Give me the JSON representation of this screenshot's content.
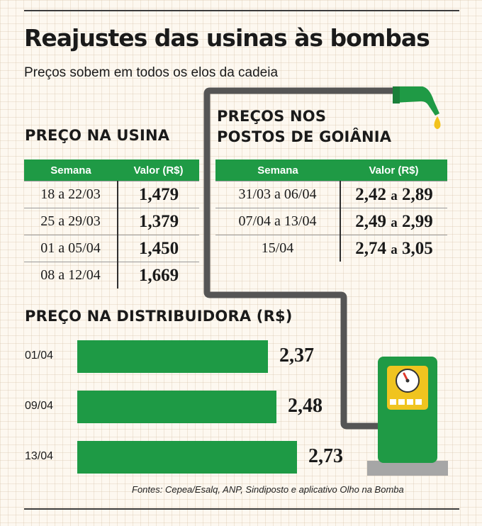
{
  "header": {
    "title": "Reajustes das usinas às bombas",
    "subtitle": "Preços sobem em todos os elos da cadeia"
  },
  "usina": {
    "heading": "PREÇO NA USINA",
    "columns": [
      "Semana",
      "Valor (R$)"
    ],
    "rows": [
      {
        "semana": "18 a 22/03",
        "valor": "1,479"
      },
      {
        "semana": "25 a 29/03",
        "valor": "1,379"
      },
      {
        "semana": "01 a 05/04",
        "valor": "1,450"
      },
      {
        "semana": "08 a 12/04",
        "valor": "1,669"
      }
    ]
  },
  "postos": {
    "heading_line1": "PREÇOS NOS",
    "heading_line2": "POSTOS DE GOIÂNIA",
    "columns": [
      "Semana",
      "Valor (R$)"
    ],
    "rows": [
      {
        "semana": "31/03 a 06/04",
        "min": "2,42",
        "sep": "a",
        "max": "2,89"
      },
      {
        "semana": "07/04 a 13/04",
        "min": "2,49",
        "sep": "a",
        "max": "2,99"
      },
      {
        "semana": "15/04",
        "min": "2,74",
        "sep": "a",
        "max": "3,05"
      }
    ]
  },
  "distribuidora": {
    "heading": "PREÇO NA DISTRIBUIDORA (R$)"
  },
  "chart_data": {
    "type": "bar",
    "orientation": "horizontal",
    "title": "PREÇO NA DISTRIBUIDORA (R$)",
    "categories": [
      "01/04",
      "09/04",
      "13/04"
    ],
    "values": [
      2.37,
      2.48,
      2.73
    ],
    "value_labels": [
      "2,37",
      "2,48",
      "2,73"
    ],
    "color": "#1e9a45"
  },
  "footer": {
    "sources": "Fontes: Cepea/Esalq, ANP, Sindiposto e aplicativo Olho na Bomba"
  },
  "colors": {
    "accent_green": "#1f9a45",
    "bar_green": "#1e9a45",
    "pipe_gray": "#555555",
    "fuel_yellow": "#f2c21c",
    "pump_gray": "#a6a6a6"
  },
  "icons": [
    "fuel-nozzle-icon",
    "fuel-drop-icon",
    "fuel-pump-icon",
    "gauge-icon"
  ]
}
